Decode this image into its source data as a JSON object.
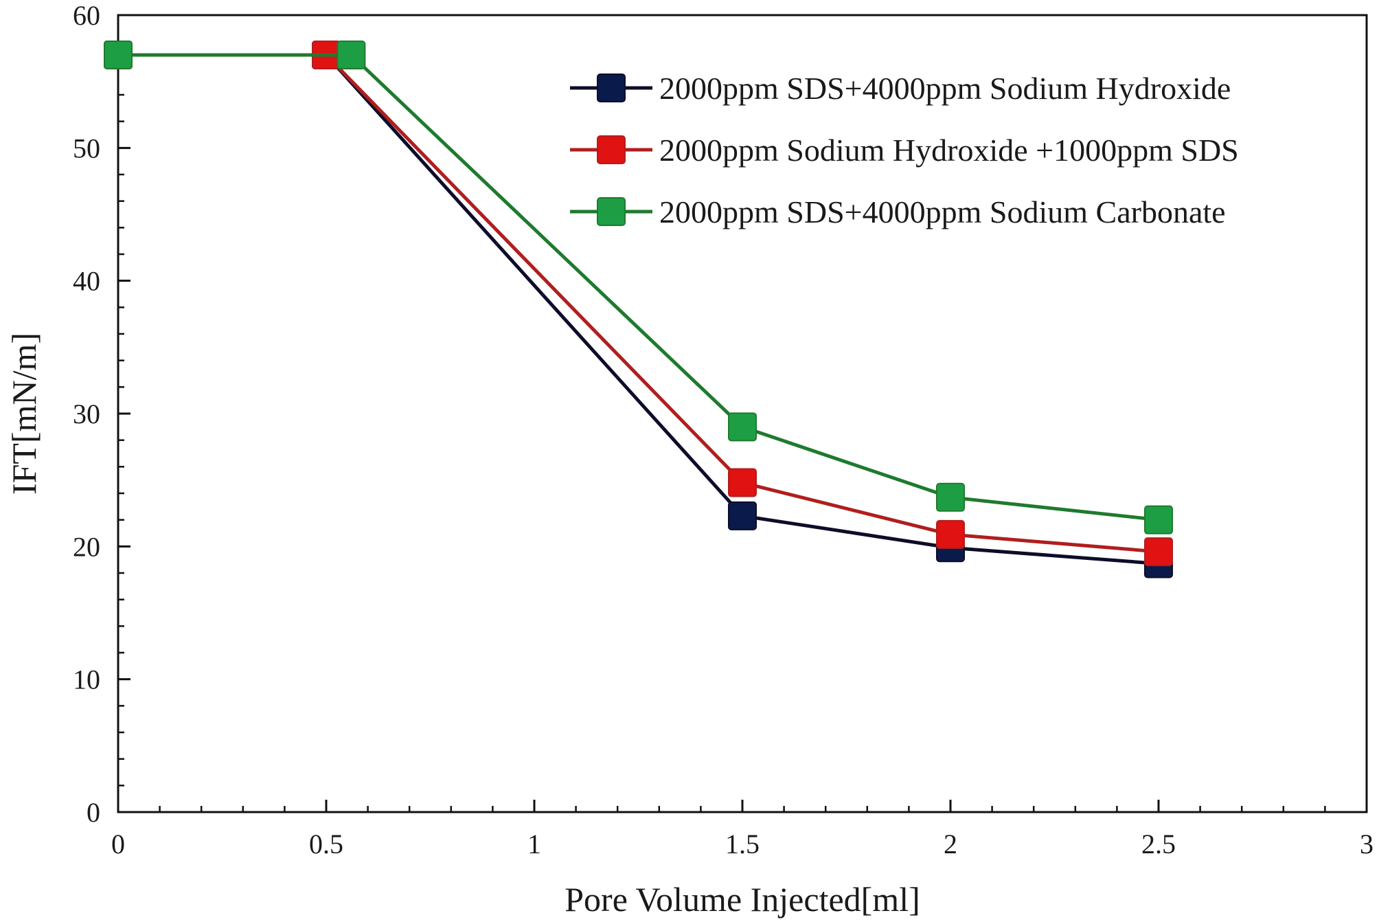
{
  "chart_data": {
    "type": "line",
    "title": "",
    "xlabel": "Pore Volume Injected[ml]",
    "ylabel": "IFT[mN/m]",
    "xlim": [
      0,
      3
    ],
    "ylim": [
      0,
      60
    ],
    "x_ticks": [
      0,
      0.5,
      1,
      1.5,
      2,
      2.5,
      3
    ],
    "x_tick_labels": [
      "0",
      "0.5",
      "1",
      "1.5",
      "2",
      "2.5",
      "3"
    ],
    "y_ticks": [
      0,
      10,
      20,
      30,
      40,
      50,
      60
    ],
    "y_tick_labels": [
      "0",
      "10",
      "20",
      "30",
      "40",
      "50",
      "60"
    ],
    "x_minor_step": 0.1,
    "y_minor_step": 2,
    "grid": false,
    "legend_position": "top-right",
    "series": [
      {
        "name": "2000ppm SDS+4000ppm Sodium Hydroxide",
        "color": "#0d0d2a",
        "marker_color": "#0a1a4a",
        "marker": "square",
        "x": [
          0,
          0.5,
          1.5,
          2,
          2.5
        ],
        "values": [
          57,
          57,
          22.3,
          19.9,
          18.7
        ]
      },
      {
        "name": "2000ppm Sodium Hydroxide +1000ppm SDS",
        "color": "#b01e1e",
        "marker_color": "#e01212",
        "marker": "square",
        "x": [
          0,
          0.5,
          1.5,
          2,
          2.5
        ],
        "values": [
          57,
          57,
          24.8,
          20.9,
          19.6
        ]
      },
      {
        "name": "2000ppm SDS+4000ppm Sodium Carbonate",
        "color": "#1f7a2e",
        "marker_color": "#1e9e44",
        "marker": "square",
        "x": [
          0,
          0.56,
          1.5,
          2,
          2.5
        ],
        "values": [
          57,
          57,
          29,
          23.7,
          22
        ]
      }
    ]
  }
}
